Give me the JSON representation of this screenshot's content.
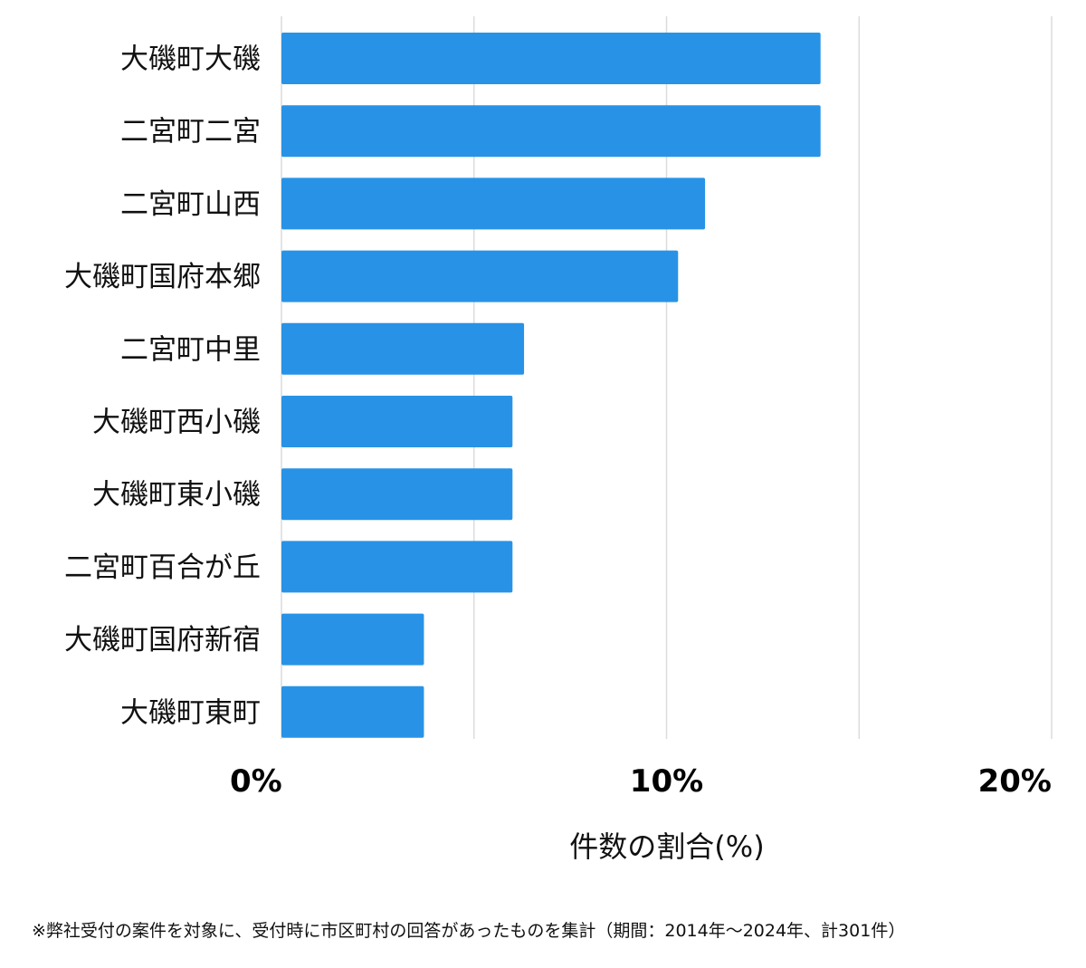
{
  "chart_data": {
    "type": "bar",
    "orientation": "horizontal",
    "categories": [
      "大磯町大磯",
      "二宮町二宮",
      "二宮町山西",
      "大磯町国府本郷",
      "二宮町中里",
      "大磯町西小磯",
      "大磯町東小磯",
      "二宮町百合が丘",
      "大磯町国府新宿",
      "大磯町東町"
    ],
    "values": [
      14.0,
      14.0,
      11.0,
      10.3,
      6.3,
      6.0,
      6.0,
      6.0,
      3.7,
      3.7
    ],
    "xlim": [
      0,
      20
    ],
    "xticks": [
      {
        "value": 0,
        "label": "0%"
      },
      {
        "value": 10,
        "label": "10%"
      },
      {
        "value": 20,
        "label": "20%"
      }
    ],
    "grid_values": [
      0,
      5,
      10,
      15,
      20
    ],
    "grid": true,
    "xlabel": "件数の割合(%)",
    "bar_color": "#2893e6",
    "grid_color": "#dcdcdc"
  },
  "footnote": "※弊社受付の案件を対象に、受付時に市区町村の回答があったものを集計（期間：2014年～2024年、計301件）"
}
